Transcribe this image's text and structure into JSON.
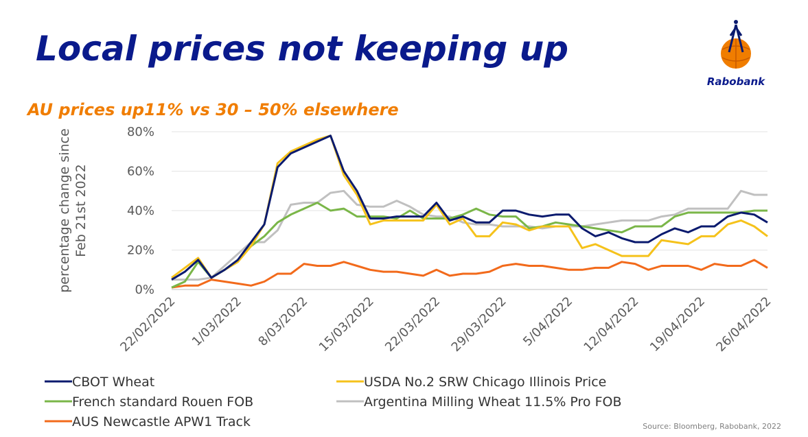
{
  "title": "Local prices not keeping up",
  "logo": "Rabobank",
  "source": "Source: Bloomberg, Rabobank, 2022",
  "chart_data": {
    "type": "line",
    "title": "AU prices up11% vs 30 – 50% elsewhere",
    "ylabel": [
      "percentage change since",
      "Feb 21st 2022"
    ],
    "categories": [
      "22/02/2022",
      null,
      null,
      null,
      null,
      "1/03/2022",
      null,
      null,
      null,
      null,
      "8/03/2022",
      null,
      null,
      null,
      null,
      "15/03/2022",
      null,
      null,
      null,
      null,
      "22/03/2022",
      null,
      null,
      null,
      null,
      "29/03/2022",
      null,
      null,
      null,
      null,
      "5/04/2022",
      null,
      null,
      null,
      null,
      "12/04/2022",
      null,
      null,
      null,
      null,
      "19/04/2022",
      null,
      null,
      null,
      null,
      "26/04/2022"
    ],
    "ylim": [
      0,
      80
    ],
    "yticks": [
      {
        "value": 0,
        "label": "0%"
      },
      {
        "value": 20,
        "label": "20%"
      },
      {
        "value": 40,
        "label": "40%"
      },
      {
        "value": 60,
        "label": "60%"
      },
      {
        "value": 80,
        "label": "80%"
      }
    ],
    "grid": true,
    "series": [
      {
        "name": "CBOT Wheat",
        "color": "#0a1a6e",
        "values": [
          5,
          9,
          15,
          6,
          10,
          15,
          24,
          33,
          62,
          69,
          72,
          75,
          78,
          60,
          50,
          36,
          36,
          37,
          37,
          37,
          44,
          35,
          37,
          34,
          34,
          40,
          40,
          38,
          37,
          38,
          38,
          31,
          27,
          29,
          26,
          24,
          24,
          28,
          31,
          29,
          32,
          32,
          37,
          39,
          38,
          34
        ]
      },
      {
        "name": "USDA No.2 SRW Chicago Illinois Price",
        "color": "#f5c21b",
        "values": [
          6,
          11,
          16,
          6,
          10,
          14,
          22,
          33,
          64,
          70,
          73,
          76,
          78,
          58,
          48,
          33,
          35,
          35,
          35,
          35,
          43,
          33,
          36,
          27,
          27,
          34,
          33,
          30,
          32,
          32,
          32,
          21,
          23,
          20,
          17,
          17,
          17,
          25,
          24,
          23,
          27,
          27,
          33,
          35,
          32,
          27
        ]
      },
      {
        "name": "French standard Rouen FOB",
        "color": "#7ab648",
        "values": [
          1,
          4,
          14,
          6,
          10,
          15,
          22,
          27,
          34,
          38,
          41,
          44,
          40,
          41,
          37,
          37,
          37,
          36,
          40,
          36,
          36,
          36,
          38,
          41,
          38,
          37,
          37,
          31,
          32,
          34,
          33,
          32,
          31,
          30,
          29,
          32,
          32,
          32,
          37,
          39,
          39,
          39,
          39,
          39,
          40,
          40
        ]
      },
      {
        "name": "Argentina Milling Wheat 11.5% Pro FOB",
        "color": "#c0c0c0",
        "values": [
          5,
          5,
          5,
          6,
          12,
          18,
          24,
          24,
          30,
          43,
          44,
          44,
          49,
          50,
          43,
          42,
          42,
          45,
          42,
          38,
          37,
          37,
          34,
          33,
          33,
          32,
          32,
          32,
          31,
          32,
          32,
          32,
          33,
          34,
          35,
          35,
          35,
          37,
          38,
          41,
          41,
          41,
          41,
          50,
          48,
          48
        ]
      },
      {
        "name": "AUS Newcastle APW1 Track",
        "color": "#f26a1b",
        "values": [
          1,
          2,
          2,
          5,
          4,
          3,
          2,
          4,
          8,
          8,
          13,
          12,
          12,
          14,
          12,
          10,
          9,
          9,
          8,
          7,
          10,
          7,
          8,
          8,
          9,
          12,
          13,
          12,
          12,
          11,
          10,
          10,
          11,
          11,
          14,
          13,
          10,
          12,
          12,
          12,
          10,
          13,
          12,
          12,
          15,
          11
        ]
      }
    ]
  }
}
